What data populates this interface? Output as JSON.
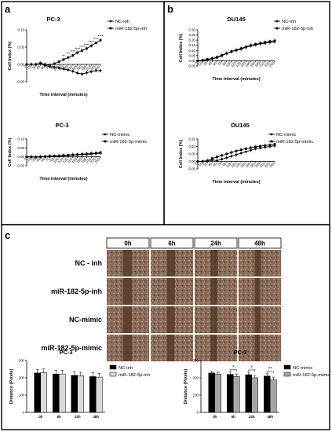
{
  "panels": {
    "a": "a",
    "b": "b",
    "c": "c"
  },
  "chart_data": [
    {
      "id": "a-top",
      "type": "line",
      "title": "PC-3",
      "xlabel": "Time interval (minutes)",
      "ylabel": "Cell Index (%)",
      "ylim": [
        -0.05,
        0.1
      ],
      "yticks": [
        "-0.05",
        "0.00",
        "0.05",
        "0.10"
      ],
      "x": [
        0,
        15,
        30,
        45,
        60,
        75,
        90,
        105,
        120,
        135,
        150,
        165,
        180,
        195,
        210,
        225,
        240
      ],
      "series": [
        {
          "name": "NC-inh",
          "marker": "circle",
          "values": [
            0.0,
            0.0,
            0.0,
            0.002,
            -0.003,
            -0.006,
            -0.008,
            -0.01,
            -0.013,
            -0.016,
            -0.02,
            -0.025,
            -0.028,
            -0.024,
            -0.021,
            -0.018,
            -0.018
          ]
        },
        {
          "name": "miR-182-5p-inh",
          "marker": "square",
          "values": [
            0.0,
            0.0,
            0.0,
            0.004,
            0.0,
            -0.002,
            0.002,
            0.008,
            0.014,
            0.02,
            0.026,
            0.034,
            0.04,
            0.046,
            0.054,
            0.062,
            0.07
          ]
        }
      ],
      "annotations": [
        "**",
        "***",
        "****",
        "****",
        "****",
        "****",
        "****",
        "****",
        "****"
      ]
    },
    {
      "id": "b-top",
      "type": "line",
      "title": "DU145",
      "xlabel": "Time interval (minutes)",
      "ylabel": "Cell Index (%)",
      "ylim": [
        -0.05,
        0.3
      ],
      "yticks": [
        "-0.05",
        "0.00",
        "0.05",
        "0.10",
        "0.15",
        "0.20",
        "0.25",
        "0.30"
      ],
      "x": [
        0,
        15,
        30,
        45,
        60,
        75,
        90,
        105,
        120,
        135,
        150,
        165,
        180,
        195,
        210,
        225,
        240
      ],
      "series": [
        {
          "name": "NC-inh",
          "marker": "circle",
          "values": [
            0.0,
            0.0,
            0.01,
            0.02,
            0.03,
            0.05,
            0.07,
            0.09,
            0.1,
            0.115,
            0.13,
            0.145,
            0.155,
            0.165,
            0.17,
            0.178,
            0.185
          ]
        },
        {
          "name": "miR-182-5p-inh",
          "marker": "square",
          "values": [
            0.0,
            0.005,
            0.015,
            0.022,
            0.035,
            0.055,
            0.072,
            0.09,
            0.105,
            0.12,
            0.135,
            0.15,
            0.16,
            0.17,
            0.18,
            0.188,
            0.195
          ]
        }
      ]
    },
    {
      "id": "a-bottom",
      "type": "line",
      "title": "PC-3",
      "xlabel": "Time interval (minutes)",
      "ylabel": "Cell Index (%)",
      "ylim": [
        -0.05,
        0.1
      ],
      "yticks": [
        "-0.05",
        "0.00",
        "0.05",
        "0.10"
      ],
      "x": [
        0,
        15,
        30,
        45,
        60,
        75,
        90,
        105,
        120,
        135,
        150,
        165,
        180,
        195,
        210,
        225,
        240
      ],
      "series": [
        {
          "name": "NC-mimic",
          "marker": "circle",
          "values": [
            0.0,
            0.0,
            -0.001,
            0.0,
            0.0,
            0.002,
            0.003,
            0.004,
            0.006,
            0.008,
            0.01,
            0.011,
            0.013,
            0.014,
            0.016,
            0.018,
            0.02
          ]
        },
        {
          "name": "miR-182-5p-mimic",
          "marker": "square",
          "values": [
            0.0,
            -0.001,
            -0.002,
            0.0,
            0.002,
            0.004,
            0.005,
            0.006,
            0.008,
            0.01,
            0.012,
            0.013,
            0.015,
            0.017,
            0.019,
            0.021,
            0.024
          ]
        }
      ]
    },
    {
      "id": "b-bottom",
      "type": "line",
      "title": "DU145",
      "xlabel": "Time interval (minutes)",
      "ylabel": "Cell Index (%)",
      "ylim": [
        -0.05,
        0.15
      ],
      "yticks": [
        "-0.05",
        "0.00",
        "0.05",
        "0.10",
        "0.15"
      ],
      "x": [
        0,
        15,
        30,
        45,
        60,
        75,
        90,
        105,
        120,
        135,
        150,
        165,
        180,
        195,
        210,
        225,
        240
      ],
      "series": [
        {
          "name": "NC-mimic",
          "marker": "circle",
          "values": [
            0.0,
            0.0,
            0.0,
            0.01,
            0.005,
            0.015,
            0.025,
            0.035,
            0.045,
            0.055,
            0.065,
            0.075,
            0.085,
            0.09,
            0.095,
            0.1,
            0.105
          ]
        },
        {
          "name": "miR-182-5p-mimic",
          "marker": "square",
          "values": [
            0.0,
            0.0,
            0.005,
            0.02,
            0.03,
            0.04,
            0.05,
            0.06,
            0.07,
            0.078,
            0.085,
            0.092,
            0.098,
            0.102,
            0.107,
            0.11,
            0.115
          ]
        }
      ]
    },
    {
      "id": "c-left",
      "type": "bar",
      "title": "PC-3",
      "ylabel": "Distance (Pixels)",
      "ylim": [
        0,
        300
      ],
      "yticks": [
        "0",
        "100",
        "200",
        "300"
      ],
      "categories": [
        "0h",
        "6h",
        "24h",
        "48h"
      ],
      "series": [
        {
          "name": "NC-inh",
          "color": "#000000",
          "values": [
            228,
            222,
            214,
            207
          ],
          "err": [
            20,
            22,
            22,
            22
          ]
        },
        {
          "name": "miR-182-5p-inh",
          "color": "#d9d9d9",
          "values": [
            230,
            222,
            212,
            204
          ],
          "err": [
            22,
            22,
            20,
            22
          ]
        }
      ],
      "significance": []
    },
    {
      "id": "c-right",
      "type": "bar",
      "title": "PC-3",
      "ylabel": "Distance (Pixels)",
      "ylim": [
        0,
        300
      ],
      "yticks": [
        "0",
        "100",
        "200",
        "300"
      ],
      "categories": [
        "0h",
        "6h",
        "24h",
        "48h"
      ],
      "series": [
        {
          "name": "NC-mimic",
          "color": "#000000",
          "values": [
            228,
            220,
            218,
            210
          ],
          "err": [
            10,
            14,
            14,
            14
          ]
        },
        {
          "name": "miR-182-5p-mimic",
          "color": "#a6a6a6",
          "values": [
            222,
            208,
            200,
            188
          ],
          "err": [
            10,
            14,
            14,
            16
          ]
        }
      ],
      "significance": [
        {
          "category": "6h",
          "label": "*"
        },
        {
          "category": "24h",
          "label": "*"
        },
        {
          "category": "48h",
          "label": "**"
        }
      ]
    }
  ],
  "wound": {
    "timepoints": [
      "0h",
      "6h",
      "24h",
      "48h"
    ],
    "rows": [
      "NC - inh",
      "miR-182-5p-inh",
      "NC-mimic",
      "miR-182-5p-mimic"
    ],
    "gaps": [
      [
        0.22,
        0.2,
        0.17,
        0.15
      ],
      [
        0.22,
        0.19,
        0.16,
        0.13
      ],
      [
        0.21,
        0.19,
        0.16,
        0.14
      ],
      [
        0.22,
        0.18,
        0.15,
        0.12
      ]
    ],
    "colors": {
      "tissue": "#8a6a58",
      "gap": "#4e3426",
      "light": "#b7a090"
    }
  }
}
